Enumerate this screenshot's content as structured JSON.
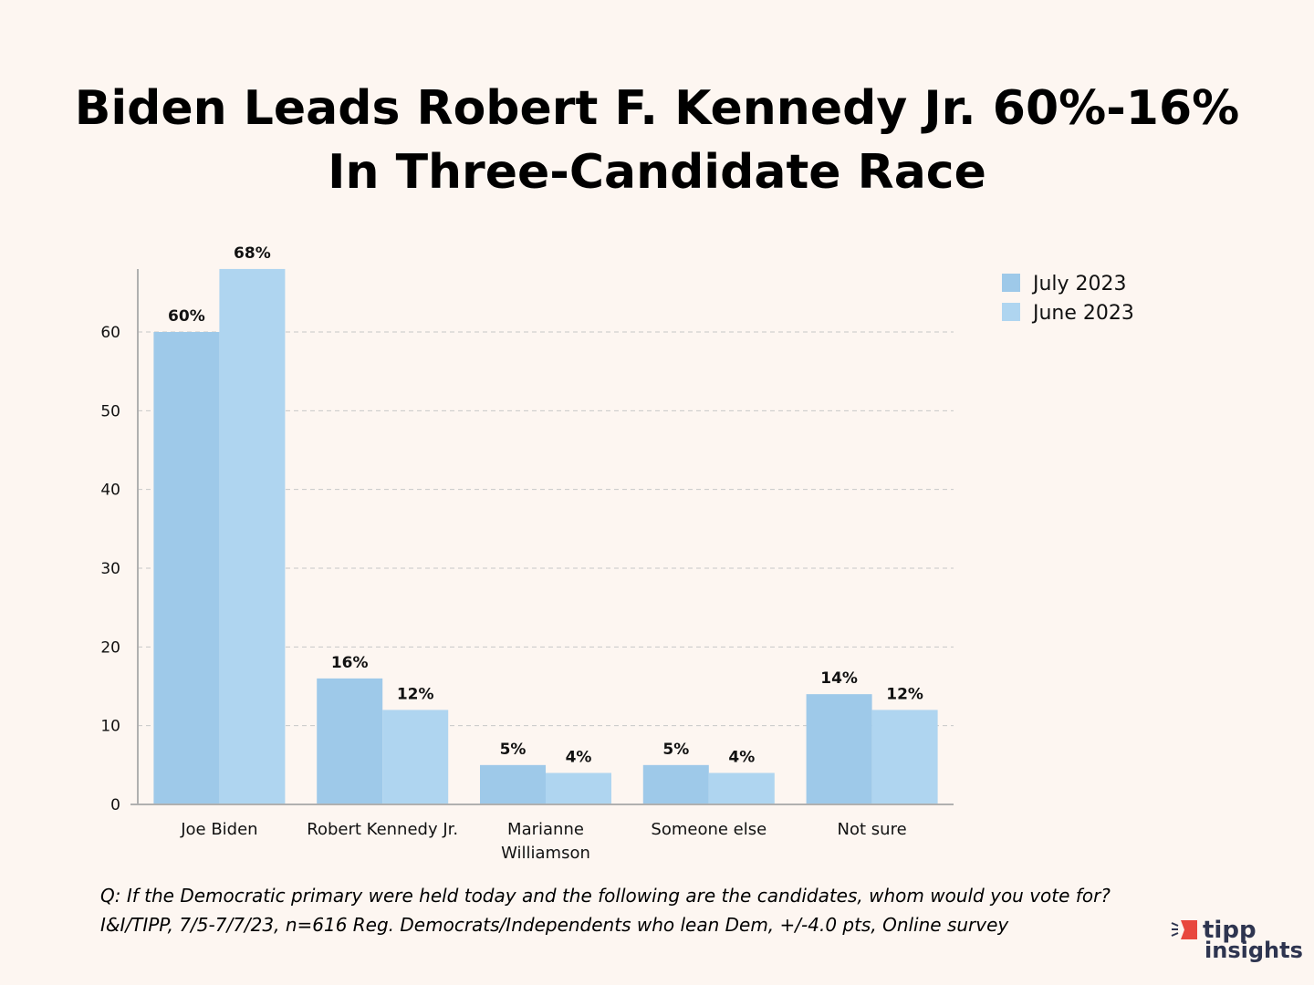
{
  "chart_data": {
    "type": "bar",
    "title": [
      "Biden Leads Robert F. Kennedy Jr. 60%-16%",
      "In Three-Candidate Race"
    ],
    "categories": [
      "Joe Biden",
      "Robert Kennedy Jr.",
      "Marianne Williamson",
      "Someone else",
      "Not sure"
    ],
    "category_lines": [
      [
        "Joe Biden"
      ],
      [
        "Robert Kennedy Jr."
      ],
      [
        "Marianne",
        "Williamson"
      ],
      [
        "Someone else"
      ],
      [
        "Not sure"
      ]
    ],
    "series": [
      {
        "name": "July 2023",
        "values": [
          60,
          16,
          5,
          5,
          14
        ],
        "labels": [
          "60%",
          "16%",
          "5%",
          "5%",
          "14%"
        ],
        "color": "#9ec9e9"
      },
      {
        "name": "June 2023",
        "values": [
          68,
          12,
          4,
          4,
          12
        ],
        "labels": [
          "68%",
          "12%",
          "4%",
          "4%",
          "12%"
        ],
        "color": "#afd5f0"
      }
    ],
    "yticks": [
      0,
      10,
      20,
      30,
      40,
      50,
      60
    ],
    "ylim": [
      0,
      68
    ],
    "grid": true,
    "legend": "top-right",
    "xlabel": "",
    "ylabel": ""
  },
  "notes": {
    "question": "Q:  If the Democratic primary were held today and the following are the candidates, whom would you vote for?",
    "source": "I&I/TIPP, 7/5-7/7/23, n=616 Reg. Democrats/Independents who lean Dem, +/-4.0 pts, Online survey"
  },
  "logo": {
    "line1": "tipp",
    "line2": "insights",
    "accent": "#e8473e",
    "text_color": "#2e3550"
  }
}
